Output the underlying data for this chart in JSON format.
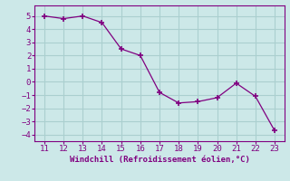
{
  "x": [
    11,
    12,
    13,
    14,
    15,
    16,
    17,
    18,
    19,
    20,
    21,
    22,
    23
  ],
  "y": [
    5.0,
    4.8,
    5.0,
    4.5,
    2.5,
    2.0,
    -0.8,
    -1.6,
    -1.5,
    -1.2,
    -0.1,
    -1.1,
    -3.7
  ],
  "line_color": "#800080",
  "marker": "+",
  "marker_color": "#800080",
  "bg_color": "#cce8e8",
  "grid_color": "#aacfcf",
  "xlabel": "Windchill (Refroidissement éolien,°C)",
  "xlabel_color": "#800080",
  "tick_color": "#800080",
  "ylim": [
    -4.5,
    5.8
  ],
  "xlim": [
    10.5,
    23.5
  ],
  "yticks": [
    -4,
    -3,
    -2,
    -1,
    0,
    1,
    2,
    3,
    4,
    5
  ],
  "xticks": [
    11,
    12,
    13,
    14,
    15,
    16,
    17,
    18,
    19,
    20,
    21,
    22,
    23
  ],
  "font_family": "monospace",
  "tick_fontsize": 6.5,
  "xlabel_fontsize": 6.5
}
